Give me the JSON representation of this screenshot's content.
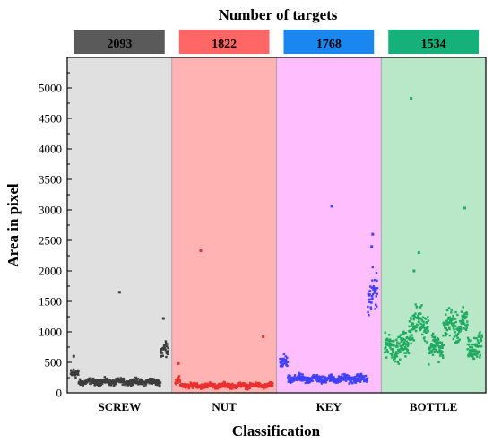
{
  "chart_data": {
    "type": "scatter",
    "title": "Number of targets",
    "xlabel": "Classification",
    "ylabel": "Area in pixel",
    "ylim": [
      0,
      5500
    ],
    "yticks": [
      0,
      500,
      1000,
      1500,
      2000,
      2500,
      3000,
      3500,
      4000,
      4500,
      5000
    ],
    "categories": [
      "SCREW",
      "NUT",
      "KEY",
      "BOTTLE"
    ],
    "counts": [
      "2093",
      "1822",
      "1768",
      "1534"
    ],
    "grid": false,
    "series": [
      {
        "name": "SCREW",
        "color": "#3d3d3d",
        "band_color": "#e0e0e0",
        "header_color": "#5a5a5a",
        "body": {
          "center": 180,
          "spread": 70,
          "n": 420
        },
        "segments": [
          {
            "from": 0.0,
            "to": 0.08,
            "center": 300,
            "spread": 120
          },
          {
            "from": 0.92,
            "to": 1.0,
            "center": 700,
            "spread": 200
          }
        ],
        "outliers": [
          [
            0.5,
            1650
          ],
          [
            0.95,
            1220
          ],
          [
            0.03,
            600
          ]
        ]
      },
      {
        "name": "NUT",
        "color": "#e8312f",
        "band_color": "#ffb3b3",
        "header_color": "#ff6666",
        "body": {
          "center": 120,
          "spread": 60,
          "n": 400
        },
        "segments": [
          {
            "from": 0.0,
            "to": 0.05,
            "center": 180,
            "spread": 90
          }
        ],
        "outliers": [
          [
            0.26,
            2330
          ],
          [
            0.9,
            920
          ],
          [
            0.03,
            480
          ]
        ]
      },
      {
        "name": "KEY",
        "color": "#4040ff",
        "band_color": "#ffbfff",
        "header_color": "#1a86f0",
        "body": {
          "center": 230,
          "spread": 90,
          "n": 420
        },
        "segments": [
          {
            "from": 0.0,
            "to": 0.08,
            "center": 480,
            "spread": 160
          },
          {
            "from": 0.9,
            "to": 1.0,
            "center": 1600,
            "spread": 500
          }
        ],
        "outliers": [
          [
            0.53,
            3060
          ],
          [
            0.95,
            2600
          ],
          [
            0.94,
            2400
          ]
        ]
      },
      {
        "name": "BOTTLE",
        "color": "#1faa60",
        "band_color": "#b8e8c8",
        "header_color": "#16b07a",
        "body": {
          "center": 750,
          "spread": 280,
          "n": 480
        },
        "segments": [
          {
            "from": 0.25,
            "to": 0.45,
            "center": 1150,
            "spread": 350
          },
          {
            "from": 0.6,
            "to": 0.85,
            "center": 1100,
            "spread": 350
          }
        ],
        "outliers": [
          [
            0.27,
            4830
          ],
          [
            0.82,
            3030
          ],
          [
            0.35,
            2300
          ],
          [
            0.3,
            2000
          ]
        ]
      }
    ]
  }
}
